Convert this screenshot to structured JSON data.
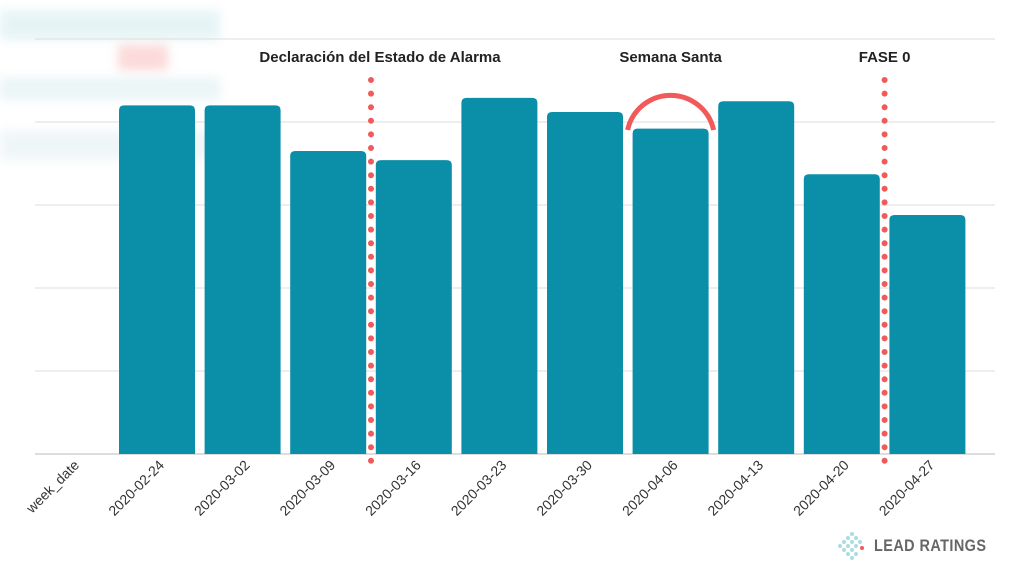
{
  "chart_data": {
    "type": "bar",
    "xlabel": "week_date",
    "categories": [
      "2020-02-24",
      "2020-03-02",
      "2020-03-09",
      "2020-03-16",
      "2020-03-23",
      "2020-03-30",
      "2020-04-06",
      "2020-04-13",
      "2020-04-20",
      "2020-04-27"
    ],
    "values": [
      4.2,
      4.2,
      3.65,
      3.54,
      4.29,
      4.12,
      3.92,
      4.25,
      3.37,
      2.88
    ],
    "ylim": [
      0,
      5
    ],
    "grid": true,
    "bar_color": "#0b8fa8",
    "annotations": [
      {
        "label": "Declaración del Estado de Alarma",
        "type": "dotted-line",
        "between": [
          "2020-03-09",
          "2020-03-16"
        ]
      },
      {
        "label": "Semana Santa",
        "type": "arc",
        "at": "2020-04-06"
      },
      {
        "label": "FASE 0",
        "type": "dotted-line",
        "between": [
          "2020-04-20",
          "2020-04-27"
        ]
      }
    ],
    "annotation_color": "#f05a5a"
  },
  "logo": {
    "text": "LEAD RATINGS"
  }
}
